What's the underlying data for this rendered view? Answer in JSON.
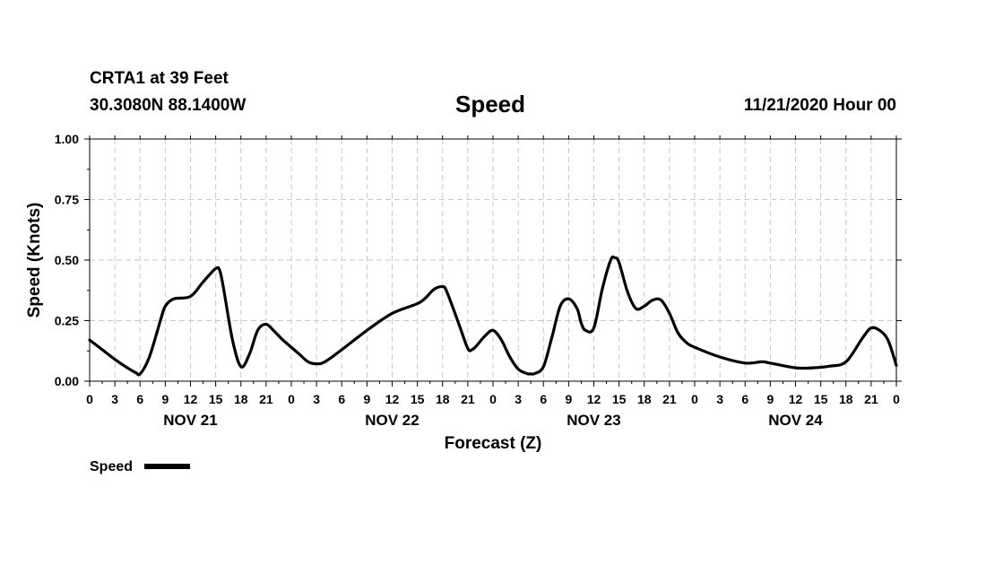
{
  "header": {
    "station_line": "CRTA1 at 39 Feet",
    "coords_line": "30.3080N 88.1400W",
    "datetime_line": "11/21/2020 Hour 00"
  },
  "chart_data": {
    "type": "line",
    "title": "Speed",
    "xlabel": "Forecast (Z)",
    "ylabel": "Speed (Knots)",
    "ylim": [
      0,
      1
    ],
    "xlim_hours": [
      0,
      96
    ],
    "y_ticks": [
      "0.00",
      "0.25",
      "0.50",
      "0.75",
      "1.00"
    ],
    "x_tick_labels": [
      "0",
      "3",
      "6",
      "9",
      "12",
      "15",
      "18",
      "21",
      "0",
      "3",
      "6",
      "9",
      "12",
      "15",
      "18",
      "21",
      "0",
      "3",
      "6",
      "9",
      "12",
      "15",
      "18",
      "21",
      "0",
      "3",
      "6",
      "9",
      "12",
      "15",
      "18",
      "21",
      "0"
    ],
    "day_labels": [
      "NOV 21",
      "NOV 22",
      "NOV 23",
      "NOV 24"
    ],
    "grid": true,
    "legend": {
      "position": "bottom-left",
      "entries": [
        {
          "name": "Speed",
          "color": "#000000"
        }
      ]
    },
    "series": [
      {
        "name": "Speed",
        "color": "#000000",
        "x_hours": [
          0,
          1.5,
          3,
          4.5,
          5.5,
          6,
          7,
          8,
          8.5,
          9,
          10,
          12,
          13.5,
          15,
          15.5,
          16,
          17,
          18,
          19,
          20,
          21,
          22,
          23,
          24,
          25,
          26,
          27,
          28,
          30,
          33,
          36,
          39,
          40,
          41,
          42,
          42.5,
          44,
          45,
          45.5,
          46,
          47,
          48,
          49,
          50,
          51,
          52,
          52.5,
          53,
          54,
          55,
          56,
          57,
          58,
          58.5,
          59,
          60,
          61,
          62,
          62.5,
          63,
          64,
          65,
          66,
          67,
          68,
          69,
          70,
          71,
          72,
          75,
          78,
          80,
          81,
          84,
          86,
          88,
          90,
          92,
          93,
          94,
          95,
          96
        ],
        "values": [
          0.17,
          0.13,
          0.09,
          0.055,
          0.035,
          0.03,
          0.09,
          0.2,
          0.26,
          0.31,
          0.34,
          0.35,
          0.41,
          0.465,
          0.455,
          0.37,
          0.17,
          0.06,
          0.11,
          0.21,
          0.235,
          0.205,
          0.17,
          0.14,
          0.11,
          0.08,
          0.072,
          0.08,
          0.13,
          0.21,
          0.28,
          0.32,
          0.345,
          0.38,
          0.39,
          0.37,
          0.23,
          0.135,
          0.13,
          0.145,
          0.185,
          0.21,
          0.17,
          0.1,
          0.05,
          0.032,
          0.03,
          0.032,
          0.06,
          0.18,
          0.31,
          0.34,
          0.3,
          0.24,
          0.21,
          0.22,
          0.38,
          0.5,
          0.51,
          0.49,
          0.37,
          0.3,
          0.31,
          0.335,
          0.335,
          0.28,
          0.2,
          0.16,
          0.14,
          0.1,
          0.075,
          0.08,
          0.075,
          0.055,
          0.055,
          0.062,
          0.08,
          0.18,
          0.22,
          0.21,
          0.17,
          0.065
        ]
      }
    ]
  }
}
